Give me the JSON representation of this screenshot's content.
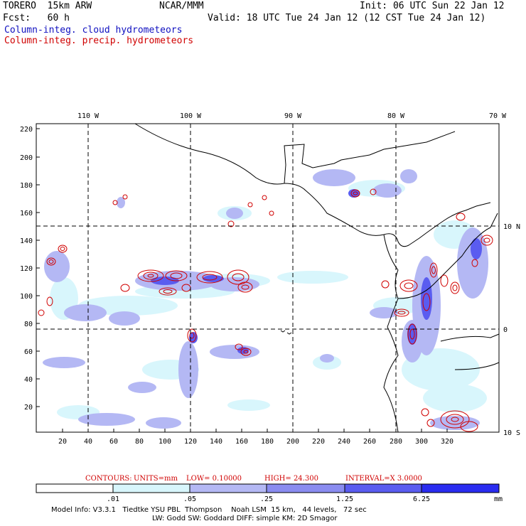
{
  "header": {
    "model": "TORERO  15km ARW",
    "org": "NCAR/MMM",
    "init": "Init: 06 UTC Sun 22 Jan 12",
    "fcst": "Fcst:   60 h",
    "valid": "Valid: 18 UTC Tue 24 Jan 12 (12 CST Tue 24 Jan 12)",
    "legend_cloud": "Column-integ. cloud hydrometeors",
    "legend_precip": "Column-integ. precip. hydrometeors"
  },
  "axes": {
    "top_labels": [
      "110 W",
      "100 W",
      "90 W",
      "80 W",
      "70 W"
    ],
    "right_labels": [
      "10 N",
      "0",
      "10 S"
    ],
    "x_ticks": [
      "20",
      "40",
      "60",
      "80",
      "100",
      "120",
      "140",
      "160",
      "180",
      "200",
      "220",
      "240",
      "260",
      "280",
      "300",
      "320"
    ],
    "y_ticks": [
      "220",
      "200",
      "180",
      "160",
      "140",
      "120",
      "100",
      "80",
      "60",
      "40",
      "20"
    ]
  },
  "contour_info": {
    "label": "CONTOURS:",
    "units": "UNITS=mm",
    "low": "LOW= 0.10000",
    "high": "HIGH=  24.300",
    "interval": "INTERVAL=X  3.0000"
  },
  "colorbar": {
    "labels": [
      ".01",
      ".05",
      ".25",
      "1.25",
      "6.25"
    ],
    "unit": "mm",
    "colors": [
      "#ffffff",
      "#d8f6fc",
      "#b4b8f4",
      "#8a8cf0",
      "#5a5cf0",
      "#2a2cf0"
    ]
  },
  "footer": {
    "line1": "Model Info: V3.3.1   Tiedtke YSU PBL  Thompson    Noah LSM  15 km,   44 levels,   72 sec",
    "line2": "LW: Godd SW: Goddard DIFF: simple KM: 2D Smagor"
  }
}
